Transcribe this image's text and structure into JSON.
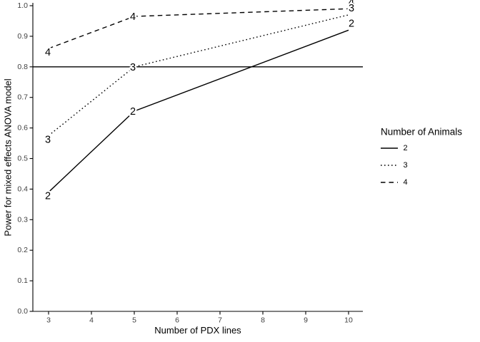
{
  "chart_data": {
    "type": "line",
    "title": "",
    "xlabel": "Number of PDX lines",
    "ylabel": "Power for mixed effects ANOVA model",
    "x": [
      3,
      5,
      10
    ],
    "series": [
      {
        "name": "2",
        "linetype": "solid",
        "values": [
          0.39,
          0.655,
          0.92
        ]
      },
      {
        "name": "3",
        "linetype": "dotted",
        "values": [
          0.575,
          0.8,
          0.97
        ]
      },
      {
        "name": "4",
        "linetype": "dashed",
        "values": [
          0.86,
          0.965,
          0.99
        ]
      }
    ],
    "point_labels": true,
    "reference_line_y": 0.8,
    "xlim": [
      2.65,
      10.35
    ],
    "ylim": [
      0.0,
      1.0
    ],
    "x_ticks": [
      "3",
      "4",
      "5",
      "6",
      "7",
      "8",
      "9",
      "10"
    ],
    "y_ticks": [
      "0.0",
      "0.1",
      "0.2",
      "0.3",
      "0.4",
      "0.5",
      "0.6",
      "0.7",
      "0.8",
      "0.9",
      "1.0"
    ],
    "grid": "off",
    "legend": {
      "title": "Number of Animals",
      "position": "right",
      "entries": [
        {
          "label": "2",
          "linetype": "solid"
        },
        {
          "label": "3",
          "linetype": "dotted"
        },
        {
          "label": "4",
          "linetype": "dashed"
        }
      ]
    },
    "line_color": "#000000",
    "background": "#ffffff"
  }
}
